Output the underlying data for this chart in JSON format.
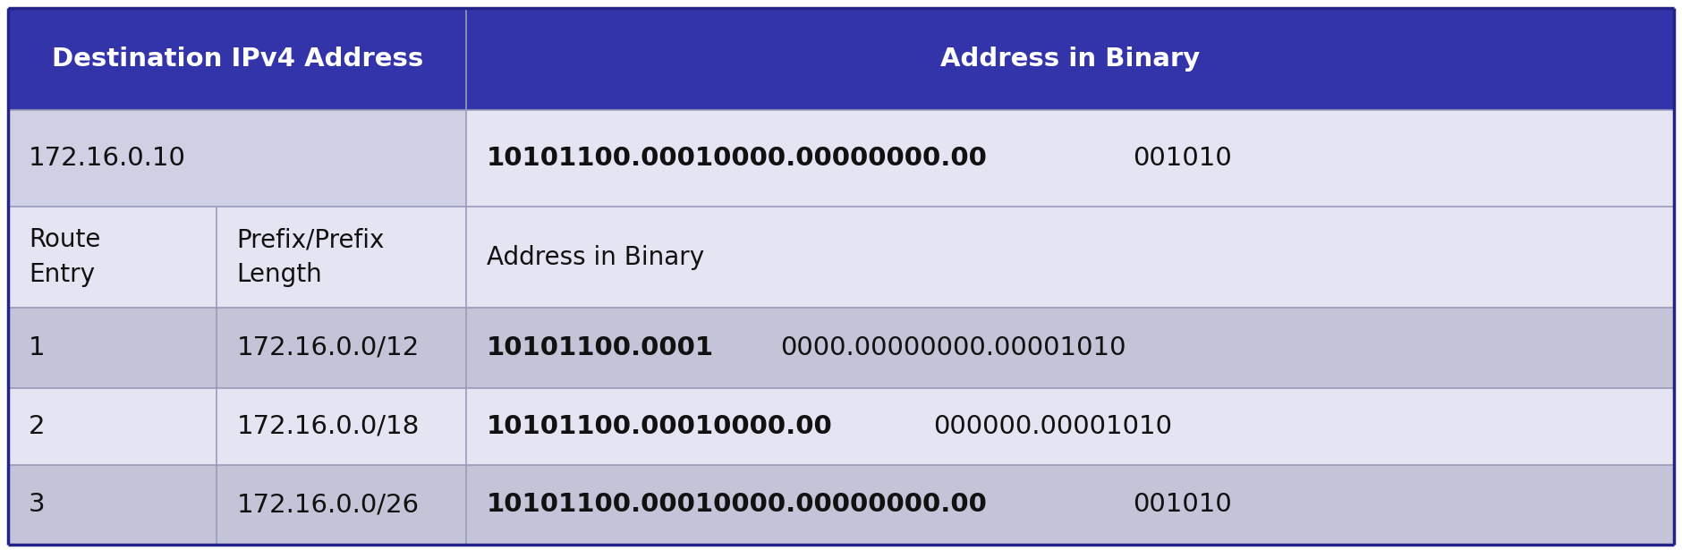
{
  "header_bg": "#3333AA",
  "header_text_color": "#FFFFFF",
  "row1_bg": "#D0D0E4",
  "row2_bg": "#E4E4F2",
  "row_alt1_bg": "#C4C4D8",
  "row_alt2_bg": "#E4E4F2",
  "col1_header": "Destination IPv4 Address",
  "col2_header": "Address in Binary",
  "dest_addr": "172.16.0.10",
  "dest_binary_bold": "10101100.00010000.00000000.00",
  "dest_binary_normal": "001010",
  "subheader_col1a": "Route\nEntry",
  "subheader_col1b": "Prefix/Prefix\nLength",
  "subheader_col2": "Address in Binary",
  "rows": [
    {
      "entry": "1",
      "prefix": "172.16.0.0/12",
      "binary_bold": "10101100.0001",
      "binary_normal": "0000.00000000.00001010"
    },
    {
      "entry": "2",
      "prefix": "172.16.0.0/18",
      "binary_bold": "10101100.00010000.00",
      "binary_normal": "000000.00001010"
    },
    {
      "entry": "3",
      "prefix": "172.16.0.0/26",
      "binary_bold": "10101100.00010000.00000000.00",
      "binary_normal": "001010"
    }
  ],
  "figsize": [
    18.8,
    6.15
  ],
  "dpi": 100
}
